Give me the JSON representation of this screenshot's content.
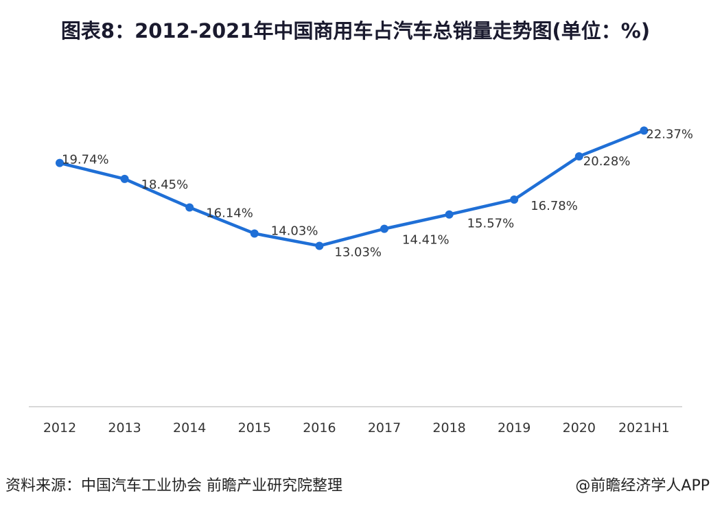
{
  "chart_data": {
    "type": "line",
    "title": "图表8：2012-2021年中国商用车占汽车总销量走势图(单位：%)",
    "categories": [
      "2012",
      "2013",
      "2014",
      "2015",
      "2016",
      "2017",
      "2018",
      "2019",
      "2020",
      "2021H1"
    ],
    "series": [
      {
        "values": [
          19.74,
          18.45,
          16.14,
          14.03,
          13.03,
          14.41,
          15.57,
          16.78,
          20.28,
          22.37
        ],
        "color": "#1f6fd6"
      }
    ],
    "data_labels": [
      "19.74%",
      "18.45%",
      "16.14%",
      "14.03%",
      "13.03%",
      "14.41%",
      "15.57%",
      "16.78%",
      "20.28%",
      "22.37%"
    ],
    "xlabel": "",
    "ylabel": "",
    "ylim": [
      0,
      25
    ],
    "grid": false,
    "legend": "none"
  },
  "footer": {
    "source": "资料来源：中国汽车工业协会 前瞻产业研究院整理",
    "credit": "@前瞻经济学人APP"
  }
}
